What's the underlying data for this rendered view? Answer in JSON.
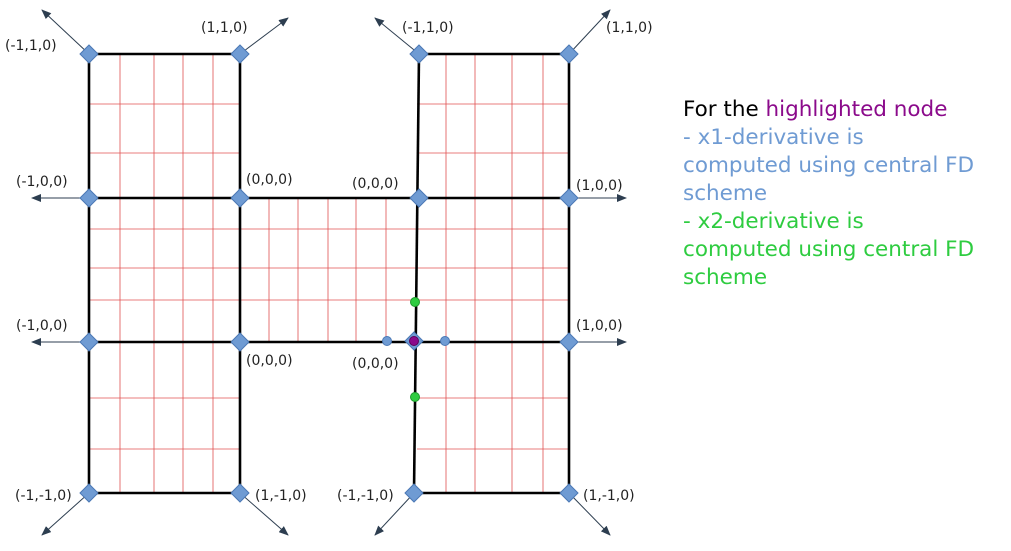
{
  "labels": {
    "b1_tl": "(-1,1,0)",
    "b1_tr": "(1,1,0)",
    "b1_ml": "(-1,0,0)",
    "b1_mr": "(0,0,0)",
    "b3_l": "(-1,0,0)",
    "b3_r": "(0,0,0)",
    "b1_bl": "(-1,-1,0)",
    "b1_br": "(1,-1,0)",
    "b2_tl": "(-1,1,0)",
    "b2_tr": "(1,1,0)",
    "b2_ml": "(0,0,0)",
    "b2_mr": "(1,0,0)",
    "b4_l": "(0,0,0)",
    "b4_r": "(1,0,0)",
    "b2_bl": "(-1,-1,0)",
    "b2_br": "(1,-1,0)"
  },
  "legend": {
    "intro": "For the ",
    "highlight": "highlighted node",
    "x1_line1": "- x1-derivative is",
    "x1_line2": "computed using central FD",
    "x1_line3": "scheme",
    "x2_line1": "- x2-derivative is",
    "x2_line2": "computed using central FD",
    "x2_line3": "scheme"
  },
  "colors": {
    "node": "#6f9bd3",
    "node_stroke": "#4a78b5",
    "grid": "#e05050",
    "frame": "#000000",
    "arrow": "#2d3e50",
    "highlight": "#8b0a8b",
    "x1": "#6f9bd3",
    "x2": "#2ecc40",
    "text": "#000000"
  }
}
